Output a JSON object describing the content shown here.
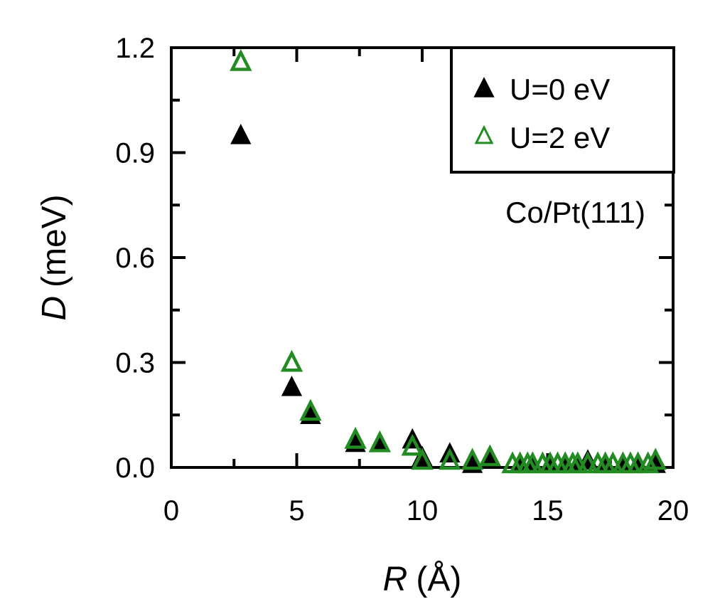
{
  "chart_data": {
    "type": "scatter",
    "title": "",
    "annotation": "Co/Pt(111)",
    "xlabel": {
      "symbol": "R",
      "unit": "(Å)"
    },
    "ylabel": {
      "symbol": "D",
      "unit": "(meV)"
    },
    "xlim": [
      0,
      20
    ],
    "ylim": [
      0,
      1.2
    ],
    "xticks": [
      0,
      5,
      10,
      15,
      20
    ],
    "xtick_labels": [
      "0",
      "5",
      "10",
      "15",
      "20"
    ],
    "yticks": [
      0.0,
      0.3,
      0.6,
      0.9,
      1.2
    ],
    "ytick_labels": [
      "0.0",
      "0.3",
      "0.6",
      "0.9",
      "1.2"
    ],
    "grid": false,
    "legend_position": "top-right",
    "series": [
      {
        "name": "U=0 eV",
        "marker": "filled-triangle",
        "color": "#000000",
        "x": [
          2.77,
          4.8,
          5.55,
          7.34,
          8.31,
          9.61,
          10.0,
          11.1,
          12.0,
          12.7,
          13.9,
          14.4,
          15.1,
          15.7,
          16.2,
          16.6,
          17.3,
          18.0,
          18.6,
          19.3
        ],
        "y": [
          0.95,
          0.23,
          0.15,
          0.07,
          0.07,
          0.08,
          0.03,
          0.04,
          0.01,
          0.03,
          0.01,
          0.01,
          0.01,
          0.01,
          0.01,
          0.02,
          0.01,
          0.01,
          0.01,
          0.01
        ]
      },
      {
        "name": "U=2 eV",
        "marker": "open-triangle",
        "color": "#228B22",
        "x": [
          2.77,
          4.8,
          5.55,
          7.34,
          8.31,
          9.61,
          10.0,
          11.1,
          12.0,
          12.7,
          13.6,
          13.9,
          14.2,
          14.4,
          14.8,
          15.1,
          15.4,
          15.7,
          16.0,
          16.2,
          16.6,
          17.0,
          17.3,
          17.6,
          18.0,
          18.3,
          18.6,
          19.0,
          19.3
        ],
        "y": [
          1.16,
          0.3,
          0.16,
          0.08,
          0.07,
          0.06,
          0.02,
          0.02,
          0.02,
          0.03,
          0.01,
          0.01,
          0.01,
          0.01,
          0.01,
          0.01,
          0.01,
          0.01,
          0.01,
          0.01,
          0.01,
          0.01,
          0.01,
          0.01,
          0.01,
          0.01,
          0.01,
          0.01,
          0.02
        ]
      }
    ]
  }
}
